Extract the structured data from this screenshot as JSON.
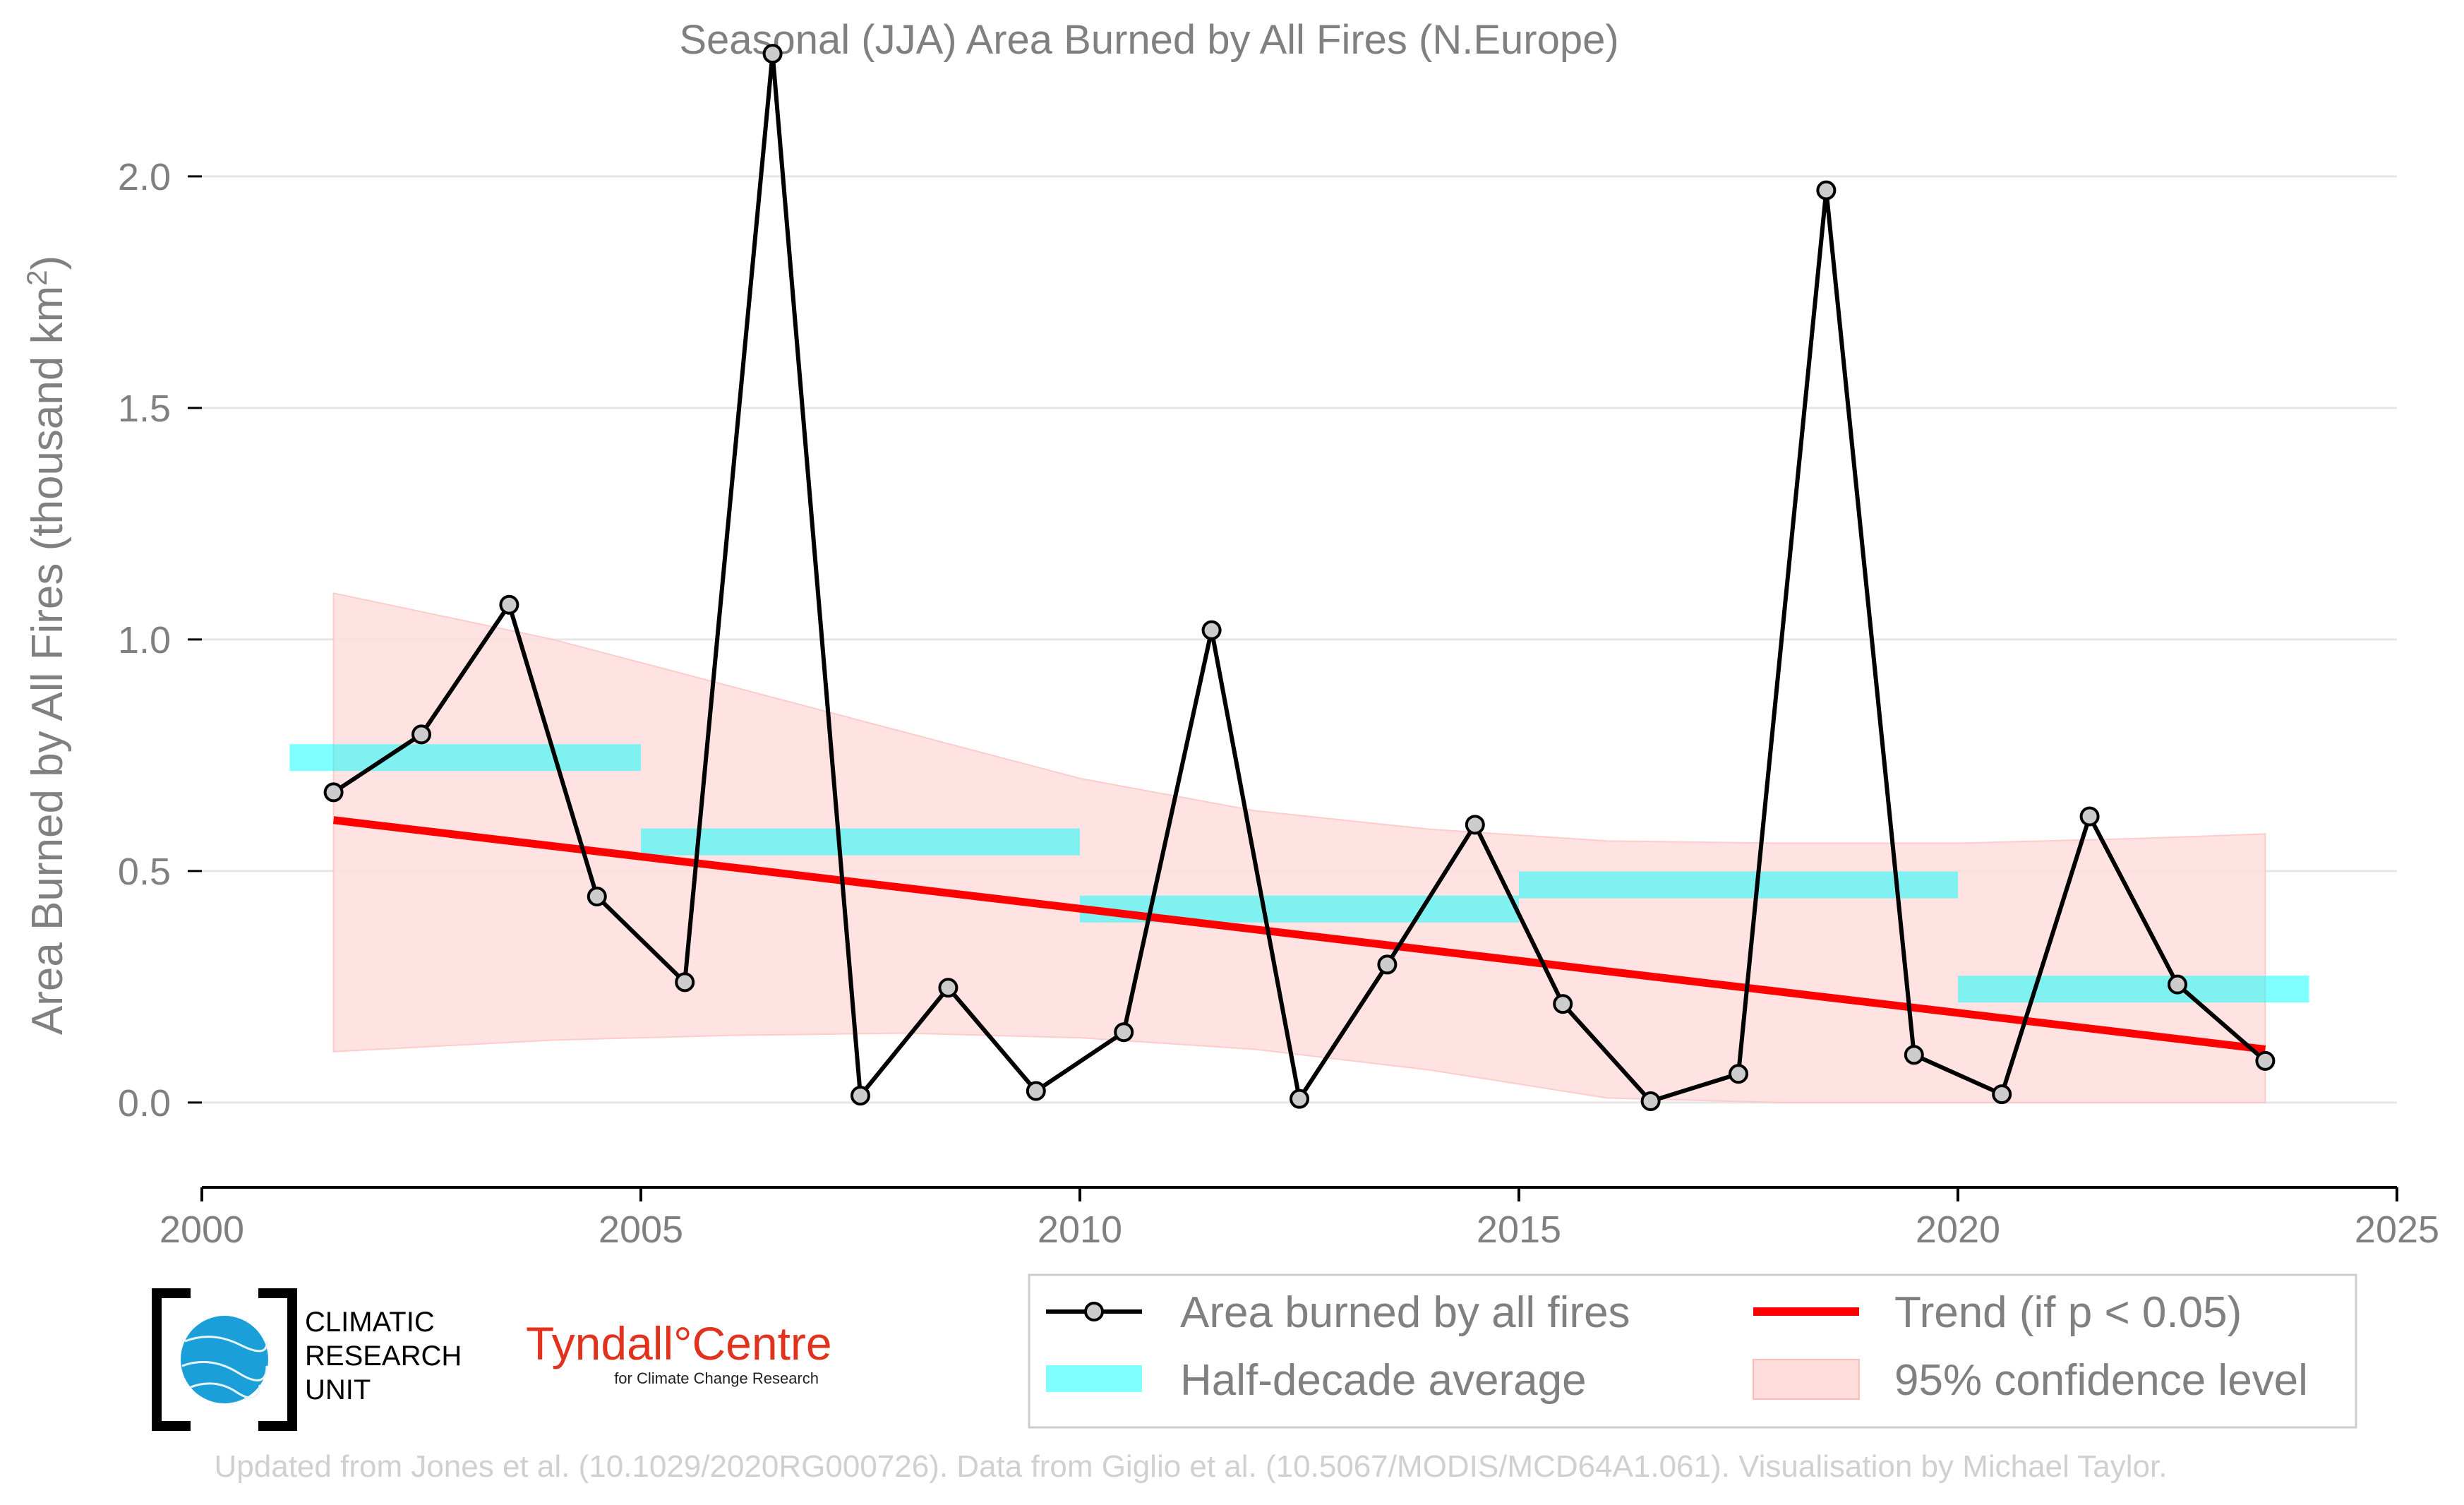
{
  "chart_data": {
    "type": "line",
    "title": "Seasonal (JJA) Area Burned by All Fires (N.Europe)",
    "xlabel": "",
    "ylabel": "Area Burned by All Fires (thousand km",
    "ylabel_superscript": "2",
    "ylabel_close": ")",
    "xlim": [
      2000,
      2025
    ],
    "ylim": [
      -0.18,
      2.32
    ],
    "x_ticks": [
      2000,
      2005,
      2010,
      2015,
      2020,
      2025
    ],
    "x_tick_labels": [
      "2000",
      "2005",
      "2010",
      "2015",
      "2020",
      "2025"
    ],
    "y_ticks": [
      0.0,
      0.5,
      1.0,
      1.5,
      2.0
    ],
    "y_tick_labels": [
      "0.0",
      "0.5",
      "1.0",
      "1.5",
      "2.0"
    ],
    "grid": true,
    "legend_position": "bottom-right",
    "series": [
      {
        "name": "Area burned by all fires",
        "type": "line",
        "color": "#000000",
        "marker_fill": "#cccccc",
        "x": [
          2001.5,
          2002.5,
          2003.5,
          2004.5,
          2005.5,
          2006.5,
          2007.5,
          2008.5,
          2009.5,
          2010.5,
          2011.5,
          2012.5,
          2013.5,
          2014.5,
          2015.5,
          2016.5,
          2017.5,
          2018.5,
          2019.5,
          2020.5,
          2021.5,
          2022.5,
          2023.5
        ],
        "values": [
          0.67,
          0.795,
          1.075,
          0.445,
          0.26,
          2.265,
          0.015,
          0.248,
          0.025,
          0.152,
          1.02,
          0.008,
          0.298,
          0.6,
          0.213,
          0.003,
          0.062,
          1.97,
          0.103,
          0.018,
          0.618,
          0.255,
          0.09
        ]
      },
      {
        "name": "Trend (if p < 0.05)",
        "type": "line",
        "color": "#ff0000",
        "x": [
          2001.5,
          2023.5
        ],
        "values": [
          0.61,
          0.115
        ]
      },
      {
        "name": "Half-decade average",
        "type": "step",
        "color": "#00ffff",
        "segments": [
          {
            "x0": 2001,
            "x1": 2005,
            "value": 0.745
          },
          {
            "x0": 2005,
            "x1": 2010,
            "value": 0.563
          },
          {
            "x0": 2010,
            "x1": 2015,
            "value": 0.418
          },
          {
            "x0": 2015,
            "x1": 2020,
            "value": 0.47
          },
          {
            "x0": 2020,
            "x1": 2024,
            "value": 0.245
          }
        ]
      },
      {
        "name": "95% confidence level",
        "type": "area",
        "color": "#ffdddd",
        "x": [
          2001.5,
          2004,
          2006,
          2008,
          2010,
          2012,
          2014,
          2016,
          2018,
          2020,
          2022,
          2023.5
        ],
        "upper": [
          1.1,
          1.0,
          0.9,
          0.8,
          0.7,
          0.63,
          0.59,
          0.565,
          0.56,
          0.56,
          0.57,
          0.58
        ],
        "lower": [
          0.11,
          0.135,
          0.145,
          0.15,
          0.14,
          0.115,
          0.07,
          0.01,
          0.0,
          0.0,
          0.0,
          0.0
        ]
      }
    ]
  },
  "logos": {
    "cru_line1": "CLIMATIC",
    "cru_line2": "RESEARCH",
    "cru_line3": "UNIT",
    "tyndall_main": "Tyndall°Centre",
    "tyndall_sub": "for Climate Change Research"
  },
  "credits": "Updated from Jones et al. (10.1029/2020RG000726). Data from Giglio et al. (10.5067/MODIS/MCD64A1.061). Visualisation by Michael Taylor."
}
